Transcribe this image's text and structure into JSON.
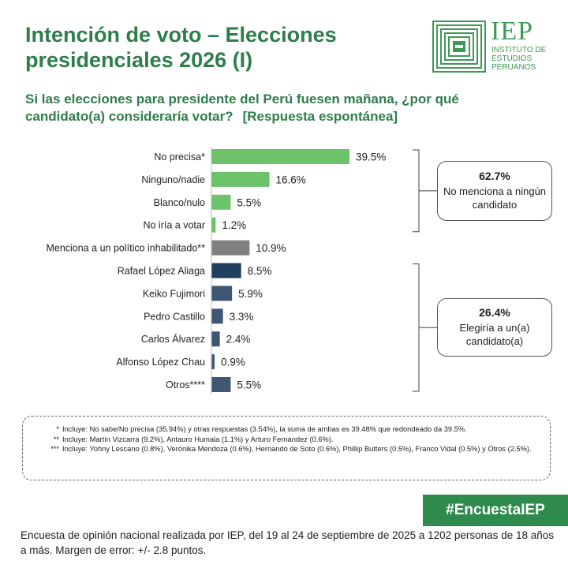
{
  "header": {
    "title_line1": "Intención de voto – Elecciones",
    "title_line2": "presidenciales 2026 (I)",
    "logo_text": "IEP",
    "logo_subtext": [
      "INSTITUTO DE",
      "ESTUDIOS",
      "PERUANOS"
    ]
  },
  "question": {
    "line1": "Si las elecciones para presidente del Perú fuesen mañana, ¿por qué",
    "line2": "candidato(a) consideraría votar?",
    "line2_note": "[Respuesta espontánea]"
  },
  "chart_data": {
    "type": "bar",
    "orientation": "horizontal",
    "categories": [
      "No precisa*",
      "Ninguno/nadie",
      "Blanco/nulo",
      "No iría a votar",
      "Menciona a un político inhabilitado**",
      "Rafael López Aliaga",
      "Keiko Fujimori",
      "Pedro Castillo",
      "Carlos Álvarez",
      "Alfonso López Chau",
      "Otros****"
    ],
    "values": [
      39.5,
      16.6,
      5.5,
      1.2,
      10.9,
      8.5,
      5.9,
      3.3,
      2.4,
      0.9,
      5.5
    ],
    "value_labels": [
      "39.5%",
      "16.6%",
      "5.5%",
      "1.2%",
      "10.9%",
      "8.5%",
      "5.9%",
      "3.3%",
      "2.4%",
      "0.9%",
      "5.5%"
    ],
    "bar_colors": [
      "#6cc36a",
      "#6cc36a",
      "#6cc36a",
      "#6cc36a",
      "#808080",
      "#1f3f5c",
      "#3f5772",
      "#3f5772",
      "#3f5772",
      "#3f5772",
      "#3f5772"
    ],
    "xlim": [
      0,
      40
    ],
    "grid": false,
    "legend": "none"
  },
  "summary": [
    {
      "pct": "62.7%",
      "text": "No menciona a ningún candidato",
      "groups_first": 0,
      "groups_last": 3
    },
    {
      "pct": "26.4%",
      "text": "Elegiría a un(a) candidato(a)",
      "groups_first": 5,
      "groups_last": 10
    }
  ],
  "notes": [
    {
      "mark": "*",
      "text": "Incluye: No sabe/No precisa (35.94%) y otras respuestas (3.54%), la suma de ambas es 39.48% que redondeado da 39.5%."
    },
    {
      "mark": "**",
      "text": "Incluye: Martín Vizcarra (9.2%), Antauro Humala (1.1%) y Arturo Fernández (0.6%)."
    },
    {
      "mark": "***",
      "text": "Incluye: Yohny Lescano (0.8%), Verónika Mendoza (0.6%), Hernando de Soto (0.6%), Phillip Butters (0.5%), Franco Vidal (0.5%) y Otros (2.5%)."
    }
  ],
  "hashtag": "#EncuestaIEP",
  "footer": "Encuesta de opinión nacional realizada por IEP, del 19 al 24 de septiembre de 2025 a 1202 personas de 18 años a más. Margen de error: +/- 2.8 puntos.",
  "colors": {
    "brand_green": "#2e7d4a",
    "hashtag_bg": "#2e8b4d"
  }
}
